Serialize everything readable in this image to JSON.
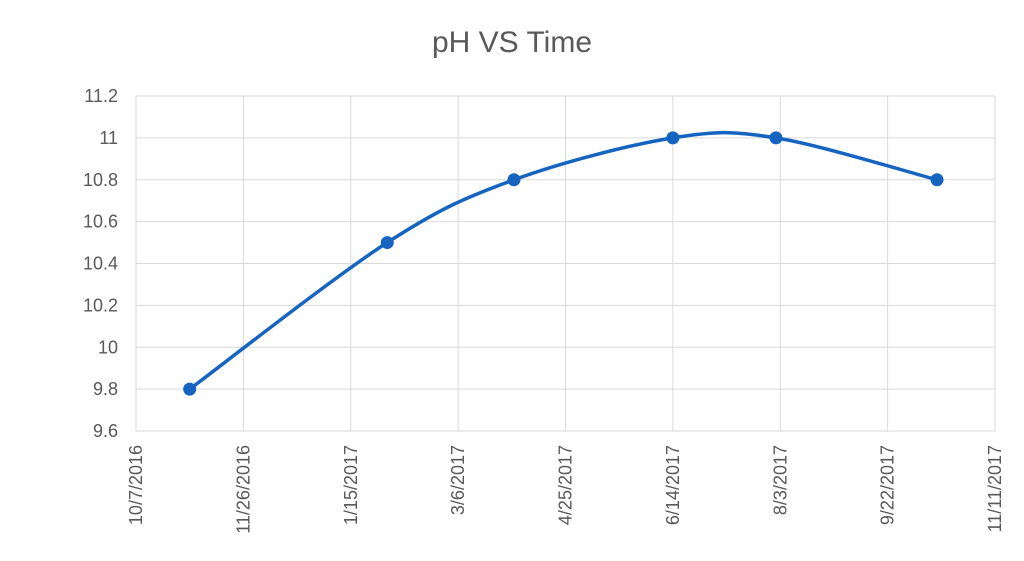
{
  "chart_data": {
    "type": "line",
    "title": "pH VS Time",
    "xlabel": "",
    "ylabel": "",
    "x_axis_type": "date",
    "xlim": [
      "10/7/2016",
      "11/11/2017"
    ],
    "x_ticks": [
      "10/7/2016",
      "11/26/2016",
      "1/15/2017",
      "3/6/2017",
      "4/25/2017",
      "6/14/2017",
      "8/3/2017",
      "9/22/2017",
      "11/11/2017"
    ],
    "ylim": [
      9.6,
      11.2
    ],
    "y_ticks": [
      "9.6",
      "9.8",
      "10",
      "10.2",
      "10.4",
      "10.6",
      "10.8",
      "11",
      "11.2"
    ],
    "grid": true,
    "legend": "none",
    "smooth": true,
    "series": [
      {
        "name": "",
        "color": "#1565c0",
        "points": [
          {
            "x": "11/1/2016",
            "y": 9.8
          },
          {
            "x": "2/1/2017",
            "y": 10.5
          },
          {
            "x": "4/1/2017",
            "y": 10.8
          },
          {
            "x": "6/14/2017",
            "y": 11.0
          },
          {
            "x": "8/1/2017",
            "y": 11.0
          },
          {
            "x": "10/15/2017",
            "y": 10.8
          }
        ]
      }
    ]
  }
}
